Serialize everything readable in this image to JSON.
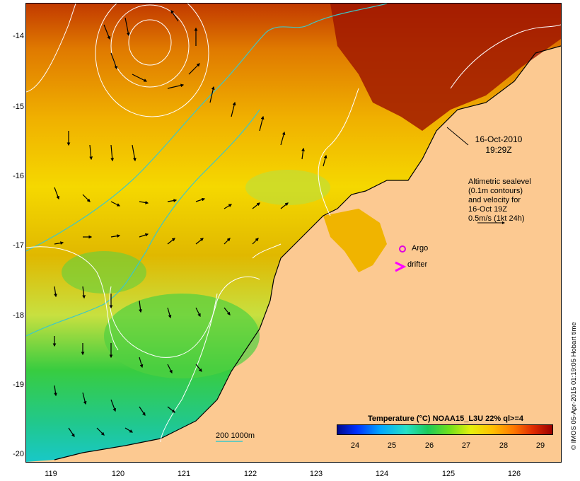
{
  "map": {
    "lat_ticks": [
      "-14",
      "-15",
      "-16",
      "-17",
      "-18",
      "-19",
      "-20"
    ],
    "lon_ticks": [
      "119",
      "120",
      "121",
      "122",
      "123",
      "124",
      "125",
      "126"
    ],
    "timestamp_line1": "16-Oct-2010",
    "timestamp_line2": "19:29Z",
    "velocity_note": [
      "Altimetric sealevel",
      "(0.1m contours)",
      "and velocity for",
      "16-Oct 19Z",
      "0.5m/s (1kt 24h)"
    ],
    "argo_label": "Argo",
    "drifter_label": "drifter",
    "depth_label": "200  1000m",
    "colorbar_title": "Temperature (°C) NOAA15_L3U 22% ql>=4",
    "colorbar_ticks": [
      "24",
      "25",
      "26",
      "27",
      "28",
      "29"
    ],
    "credit": "© IMOS 05-Apr-2015 01:19:05 Hobart time"
  },
  "colors": {
    "land": "#fcc991",
    "depth_contour": "#3cc8c8",
    "sealevel_contour": "#ffffff",
    "argo_marker": "#e000e0",
    "drifter_marker": "#ff00ff"
  }
}
